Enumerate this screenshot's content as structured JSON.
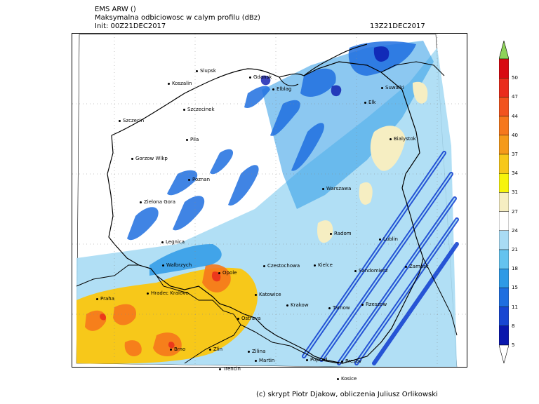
{
  "header": {
    "model": "EMS ARW ()",
    "field": "Maksymalna odbiciowosc w calym profilu (dBz)",
    "init": "Init: 00Z21DEC2017",
    "valid": "13Z21DEC2017"
  },
  "footer": "(c) skrypt Piotr Djakow, obliczenia Juliusz Orlikowski",
  "legend": {
    "levels": [
      "50",
      "47",
      "44",
      "40",
      "37",
      "34",
      "31",
      "27",
      "24",
      "21",
      "18",
      "15",
      "11",
      "8",
      "5"
    ],
    "colors": [
      "#d80a12",
      "#ea2c1c",
      "#f2541e",
      "#f6781c",
      "#f59a1a",
      "#f7c81a",
      "#f7f40c",
      "#f6eec2",
      "#ffffff",
      "#a9dbf4",
      "#64c3ef",
      "#2e9ae6",
      "#1f6fe0",
      "#1846d2",
      "#0a17ad"
    ],
    "top_arrow_color": "#8ed35a",
    "bottom_arrow_color": "#ffffff"
  },
  "cities": [
    {
      "name": "Slupsk"
    },
    {
      "name": "Koszalin"
    },
    {
      "name": "Gdansk"
    },
    {
      "name": "Elblag"
    },
    {
      "name": "Suwalki"
    },
    {
      "name": "Szczecinek"
    },
    {
      "name": "Elk"
    },
    {
      "name": "Szczecin"
    },
    {
      "name": "Bialystok"
    },
    {
      "name": "Pila"
    },
    {
      "name": "Gorzow Wlkp"
    },
    {
      "name": "Poznan"
    },
    {
      "name": "Warszawa"
    },
    {
      "name": "Zielona Gora"
    },
    {
      "name": "Radom"
    },
    {
      "name": "Legnica"
    },
    {
      "name": "Lublin"
    },
    {
      "name": "Walbrzych"
    },
    {
      "name": "Opole"
    },
    {
      "name": "Czestochowa"
    },
    {
      "name": "Kielce"
    },
    {
      "name": "Sandomierz"
    },
    {
      "name": "Zamosc"
    },
    {
      "name": "Hradec Kralove"
    },
    {
      "name": "Praha"
    },
    {
      "name": "Katowice"
    },
    {
      "name": "Krakow"
    },
    {
      "name": "Tarnow"
    },
    {
      "name": "Rzeszow"
    },
    {
      "name": "Ostrava"
    },
    {
      "name": "Brno"
    },
    {
      "name": "Zlin"
    },
    {
      "name": "Zilina"
    },
    {
      "name": "Martin"
    },
    {
      "name": "Poprad"
    },
    {
      "name": "Presov"
    },
    {
      "name": "Trencin"
    },
    {
      "name": "Kosice"
    }
  ]
}
